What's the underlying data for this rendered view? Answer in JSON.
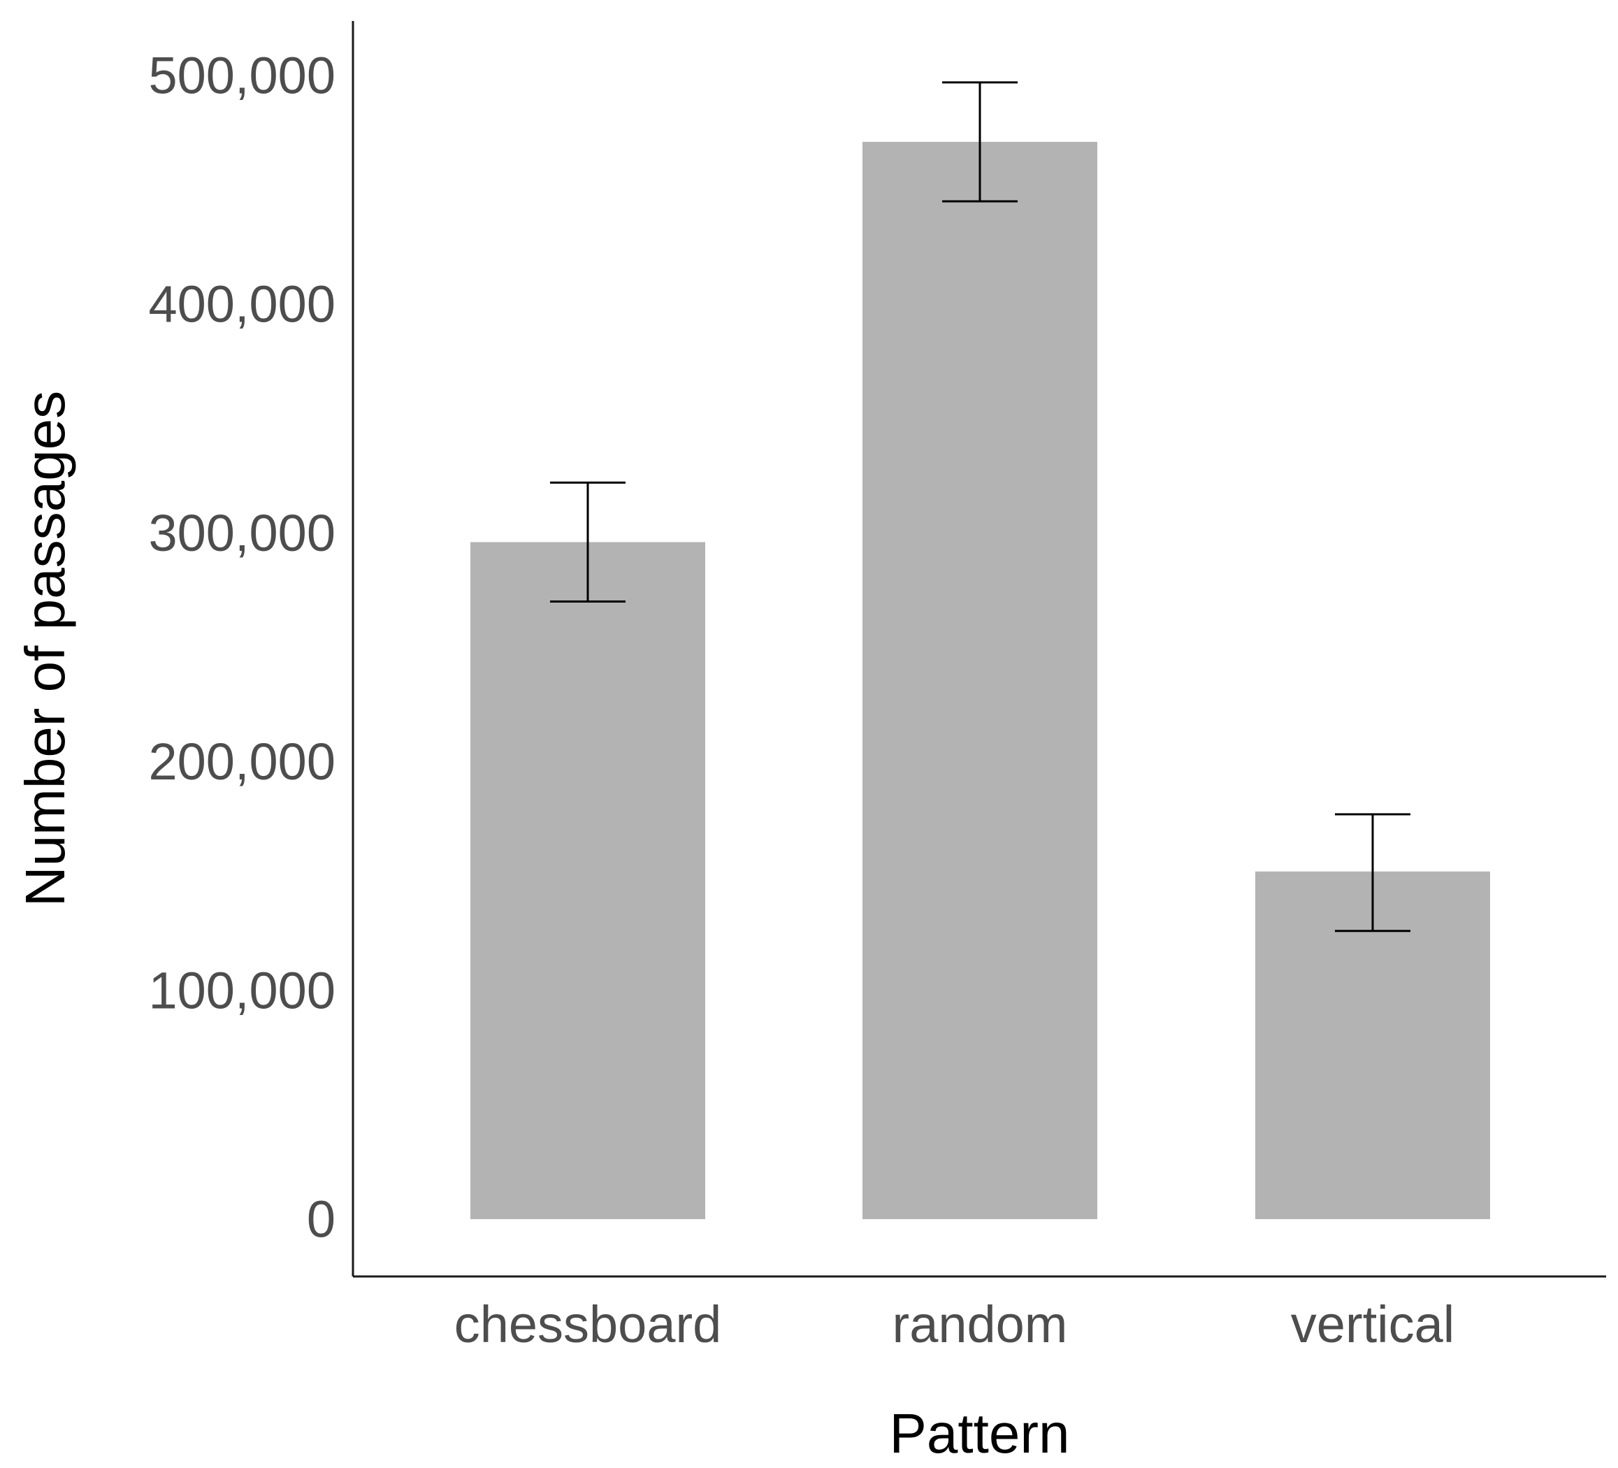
{
  "chart_data": {
    "type": "bar",
    "categories": [
      "chessboard",
      "random",
      "vertical"
    ],
    "values": [
      296000,
      471000,
      152000
    ],
    "error_bars": [
      {
        "low": 270000,
        "high": 322000
      },
      {
        "low": 445000,
        "high": 497000
      },
      {
        "low": 126000,
        "high": 177000
      }
    ],
    "title": "",
    "xlabel": "Pattern",
    "ylabel": "Number of passages",
    "ylim": [
      0,
      500000
    ],
    "yticks": [
      0,
      100000,
      200000,
      300000,
      400000,
      500000
    ],
    "ytick_labels": [
      "0",
      "100,000",
      "200,000",
      "300,000",
      "400,000",
      "500,000"
    ],
    "grid": false,
    "legend": "none",
    "colors": {
      "bar": "#b3b3b3",
      "axis": "#1a1a1a",
      "errorbar": "#000000",
      "tick_text": "#4d4d4d",
      "title_text": "#000000"
    }
  }
}
